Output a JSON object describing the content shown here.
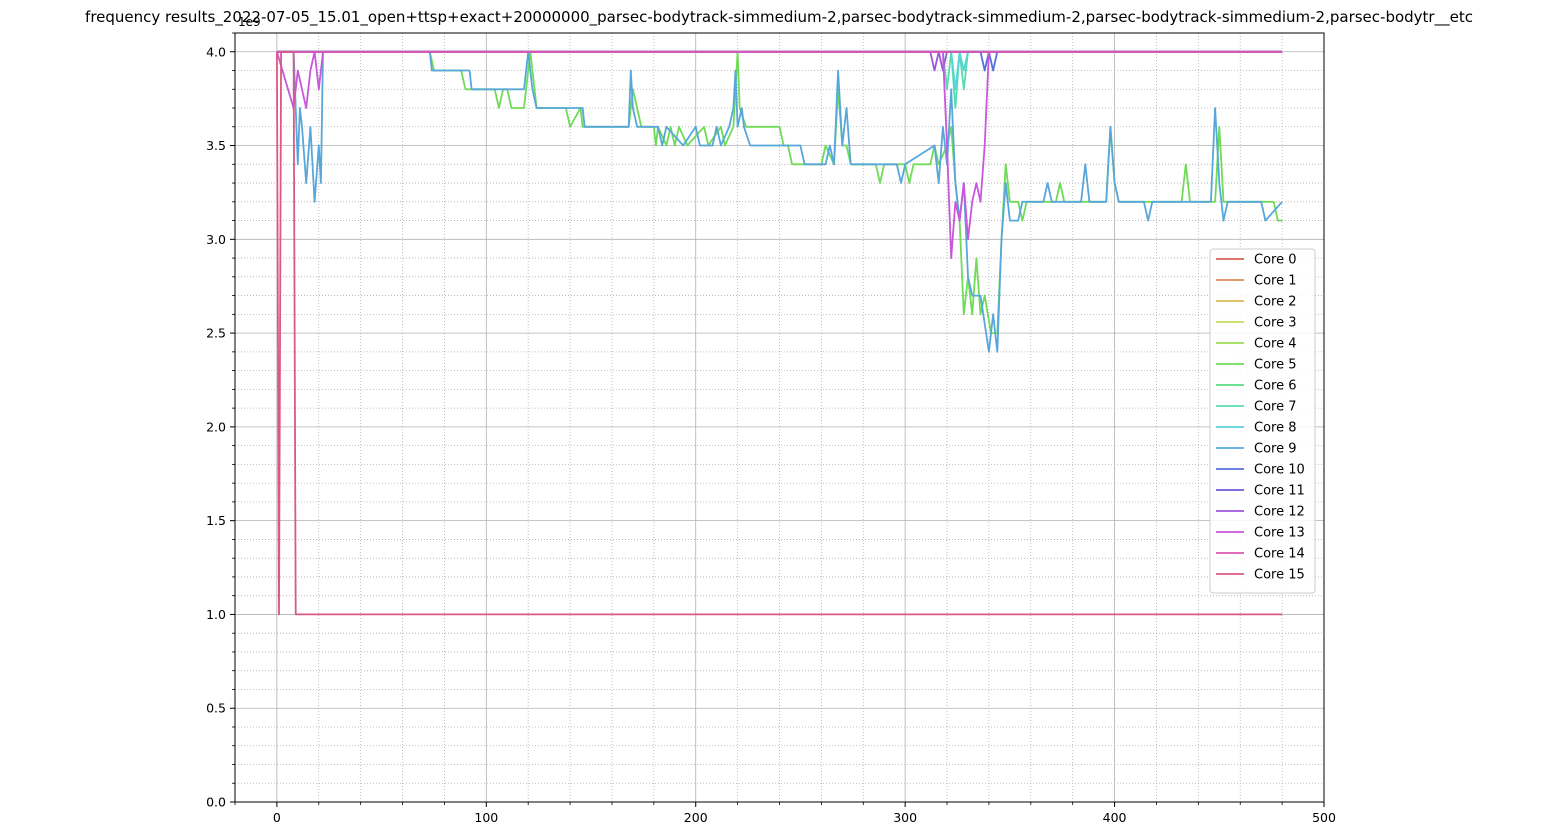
{
  "chart_data": {
    "type": "line",
    "title": "frequency results_2022-07-05_15.01_open+ttsp+exact+20000000_parsec-bodytrack-simmedium-2,parsec-bodytrack-simmedium-2,parsec-bodytrack-simmedium-2,parsec-bodytr__etc",
    "xlabel": "",
    "ylabel": "",
    "y_scale_label": "1e9",
    "xlim": [
      -20,
      500
    ],
    "ylim": [
      0,
      4.1
    ],
    "x_ticks": [
      0,
      100,
      200,
      300,
      400,
      500
    ],
    "y_ticks": [
      0.0,
      0.5,
      1.0,
      1.5,
      2.0,
      2.5,
      3.0,
      3.5,
      4.0
    ],
    "grid": "major solid, minor dotted",
    "legend_placement": "center-right",
    "series": [
      {
        "name": "Core 0",
        "color": "#db5f57",
        "points": [
          [
            0,
            4.0
          ],
          [
            480,
            4.0
          ]
        ]
      },
      {
        "name": "Core 1",
        "color": "#db8c57",
        "points": [
          [
            0,
            4.0
          ],
          [
            480,
            4.0
          ]
        ]
      },
      {
        "name": "Core 2",
        "color": "#dbb857",
        "points": [
          [
            0,
            4.0
          ],
          [
            480,
            4.0
          ]
        ]
      },
      {
        "name": "Core 3",
        "color": "#c8db57",
        "points": [
          [
            0,
            4.0
          ],
          [
            480,
            4.0
          ]
        ]
      },
      {
        "name": "Core 4",
        "color": "#9cdb57",
        "points": [
          [
            0,
            4.0
          ],
          [
            480,
            4.0
          ]
        ]
      },
      {
        "name": "Core 5",
        "color": "#6fdb57",
        "points": [
          [
            0,
            4.0
          ],
          [
            73,
            4.0
          ],
          [
            75,
            3.9
          ],
          [
            88,
            3.9
          ],
          [
            90,
            3.8
          ],
          [
            104,
            3.8
          ],
          [
            106,
            3.7
          ],
          [
            108,
            3.8
          ],
          [
            110,
            3.8
          ],
          [
            112,
            3.7
          ],
          [
            118,
            3.7
          ],
          [
            120,
            3.9
          ],
          [
            121,
            4.0
          ],
          [
            122,
            3.9
          ],
          [
            124,
            3.7
          ],
          [
            138,
            3.7
          ],
          [
            140,
            3.6
          ],
          [
            145,
            3.7
          ],
          [
            146,
            3.6
          ],
          [
            168,
            3.6
          ],
          [
            170,
            3.8
          ],
          [
            172,
            3.7
          ],
          [
            174,
            3.6
          ],
          [
            180,
            3.6
          ],
          [
            181,
            3.5
          ],
          [
            182,
            3.6
          ],
          [
            186,
            3.5
          ],
          [
            188,
            3.6
          ],
          [
            190,
            3.5
          ],
          [
            192,
            3.6
          ],
          [
            196,
            3.5
          ],
          [
            204,
            3.6
          ],
          [
            206,
            3.5
          ],
          [
            212,
            3.6
          ],
          [
            214,
            3.5
          ],
          [
            218,
            3.6
          ],
          [
            220,
            4.0
          ],
          [
            221,
            3.7
          ],
          [
            224,
            3.6
          ],
          [
            240,
            3.6
          ],
          [
            242,
            3.5
          ],
          [
            244,
            3.5
          ],
          [
            246,
            3.4
          ],
          [
            260,
            3.4
          ],
          [
            262,
            3.5
          ],
          [
            266,
            3.4
          ],
          [
            268,
            3.8
          ],
          [
            270,
            3.5
          ],
          [
            272,
            3.5
          ],
          [
            274,
            3.4
          ],
          [
            286,
            3.4
          ],
          [
            288,
            3.3
          ],
          [
            290,
            3.4
          ],
          [
            300,
            3.4
          ],
          [
            302,
            3.3
          ],
          [
            304,
            3.4
          ],
          [
            312,
            3.4
          ],
          [
            314,
            3.5
          ],
          [
            316,
            3.4
          ],
          [
            320,
            3.5
          ],
          [
            322,
            3.6
          ],
          [
            324,
            3.3
          ],
          [
            326,
            3.1
          ],
          [
            328,
            2.6
          ],
          [
            330,
            2.8
          ],
          [
            332,
            2.6
          ],
          [
            334,
            2.9
          ],
          [
            336,
            2.6
          ],
          [
            338,
            2.7
          ],
          [
            341,
            2.5
          ],
          [
            344,
            2.5
          ],
          [
            346,
            3.0
          ],
          [
            348,
            3.4
          ],
          [
            350,
            3.2
          ],
          [
            354,
            3.2
          ],
          [
            356,
            3.1
          ],
          [
            358,
            3.2
          ],
          [
            372,
            3.2
          ],
          [
            374,
            3.3
          ],
          [
            376,
            3.2
          ],
          [
            396,
            3.2
          ],
          [
            398,
            3.6
          ],
          [
            400,
            3.3
          ],
          [
            402,
            3.2
          ],
          [
            432,
            3.2
          ],
          [
            434,
            3.4
          ],
          [
            436,
            3.2
          ],
          [
            448,
            3.2
          ],
          [
            450,
            3.6
          ],
          [
            452,
            3.2
          ],
          [
            476,
            3.2
          ],
          [
            478,
            3.1
          ],
          [
            480,
            3.1
          ]
        ]
      },
      {
        "name": "Core 6",
        "color": "#57db80",
        "points": [
          [
            0,
            4.0
          ],
          [
            480,
            4.0
          ]
        ]
      },
      {
        "name": "Core 7",
        "color": "#57dbac",
        "points": [
          [
            0,
            4.0
          ],
          [
            318,
            4.0
          ],
          [
            320,
            3.8
          ],
          [
            322,
            4.0
          ],
          [
            324,
            3.7
          ],
          [
            326,
            4.0
          ],
          [
            328,
            3.8
          ],
          [
            330,
            4.0
          ],
          [
            332,
            4.0
          ],
          [
            480,
            4.0
          ]
        ]
      },
      {
        "name": "Core 8",
        "color": "#57d3db",
        "points": [
          [
            0,
            4.0
          ],
          [
            322,
            4.0
          ],
          [
            324,
            3.8
          ],
          [
            326,
            4.0
          ],
          [
            328,
            3.9
          ],
          [
            330,
            4.0
          ],
          [
            480,
            4.0
          ]
        ]
      },
      {
        "name": "Core 9",
        "color": "#57a7db",
        "points": [
          [
            0,
            4.0
          ],
          [
            8,
            4.0
          ],
          [
            10,
            3.4
          ],
          [
            11,
            3.7
          ],
          [
            12,
            3.6
          ],
          [
            14,
            3.3
          ],
          [
            16,
            3.6
          ],
          [
            18,
            3.2
          ],
          [
            20,
            3.5
          ],
          [
            21,
            3.3
          ],
          [
            22,
            4.0
          ],
          [
            73,
            4.0
          ],
          [
            74,
            3.9
          ],
          [
            92,
            3.9
          ],
          [
            93,
            3.8
          ],
          [
            118,
            3.8
          ],
          [
            120,
            4.0
          ],
          [
            122,
            3.8
          ],
          [
            124,
            3.7
          ],
          [
            146,
            3.7
          ],
          [
            147,
            3.6
          ],
          [
            168,
            3.6
          ],
          [
            169,
            3.9
          ],
          [
            170,
            3.7
          ],
          [
            172,
            3.6
          ],
          [
            182,
            3.6
          ],
          [
            184,
            3.5
          ],
          [
            186,
            3.6
          ],
          [
            194,
            3.5
          ],
          [
            200,
            3.6
          ],
          [
            202,
            3.5
          ],
          [
            208,
            3.5
          ],
          [
            210,
            3.6
          ],
          [
            212,
            3.5
          ],
          [
            216,
            3.6
          ],
          [
            218,
            3.7
          ],
          [
            219,
            3.9
          ],
          [
            220,
            3.6
          ],
          [
            222,
            3.7
          ],
          [
            223,
            3.6
          ],
          [
            226,
            3.5
          ],
          [
            250,
            3.5
          ],
          [
            252,
            3.4
          ],
          [
            262,
            3.4
          ],
          [
            264,
            3.5
          ],
          [
            266,
            3.4
          ],
          [
            268,
            3.9
          ],
          [
            270,
            3.5
          ],
          [
            272,
            3.7
          ],
          [
            274,
            3.4
          ],
          [
            296,
            3.4
          ],
          [
            298,
            3.3
          ],
          [
            300,
            3.4
          ],
          [
            314,
            3.5
          ],
          [
            316,
            3.3
          ],
          [
            318,
            3.6
          ],
          [
            320,
            3.4
          ],
          [
            322,
            3.8
          ],
          [
            324,
            3.3
          ],
          [
            326,
            3.1
          ],
          [
            328,
            3.3
          ],
          [
            330,
            2.8
          ],
          [
            332,
            2.7
          ],
          [
            336,
            2.7
          ],
          [
            340,
            2.4
          ],
          [
            342,
            2.6
          ],
          [
            344,
            2.4
          ],
          [
            346,
            3.0
          ],
          [
            348,
            3.3
          ],
          [
            350,
            3.1
          ],
          [
            354,
            3.1
          ],
          [
            356,
            3.2
          ],
          [
            366,
            3.2
          ],
          [
            368,
            3.3
          ],
          [
            370,
            3.2
          ],
          [
            384,
            3.2
          ],
          [
            386,
            3.4
          ],
          [
            388,
            3.2
          ],
          [
            396,
            3.2
          ],
          [
            398,
            3.6
          ],
          [
            400,
            3.3
          ],
          [
            402,
            3.2
          ],
          [
            414,
            3.2
          ],
          [
            416,
            3.1
          ],
          [
            418,
            3.2
          ],
          [
            446,
            3.2
          ],
          [
            448,
            3.7
          ],
          [
            450,
            3.3
          ],
          [
            452,
            3.1
          ],
          [
            454,
            3.2
          ],
          [
            470,
            3.2
          ],
          [
            472,
            3.1
          ],
          [
            480,
            3.2
          ]
        ]
      },
      {
        "name": "Core 10",
        "color": "#5770db",
        "points": [
          [
            0,
            4.0
          ],
          [
            336,
            4.0
          ],
          [
            338,
            3.9
          ],
          [
            340,
            4.0
          ],
          [
            342,
            3.9
          ],
          [
            344,
            4.0
          ],
          [
            480,
            4.0
          ]
        ]
      },
      {
        "name": "Core 11",
        "color": "#6f57db",
        "points": [
          [
            0,
            4.0
          ],
          [
            480,
            4.0
          ]
        ]
      },
      {
        "name": "Core 12",
        "color": "#9c57db",
        "points": [
          [
            0,
            4.0
          ],
          [
            312,
            4.0
          ],
          [
            314,
            3.9
          ],
          [
            316,
            4.0
          ],
          [
            318,
            3.9
          ],
          [
            320,
            4.0
          ],
          [
            480,
            4.0
          ]
        ]
      },
      {
        "name": "Core 13",
        "color": "#c857db",
        "points": [
          [
            0,
            4.0
          ],
          [
            8,
            3.7
          ],
          [
            10,
            3.9
          ],
          [
            12,
            3.8
          ],
          [
            14,
            3.7
          ],
          [
            16,
            3.9
          ],
          [
            18,
            4.0
          ],
          [
            20,
            3.8
          ],
          [
            22,
            4.0
          ],
          [
            318,
            4.0
          ],
          [
            320,
            3.5
          ],
          [
            322,
            2.9
          ],
          [
            324,
            3.2
          ],
          [
            326,
            3.1
          ],
          [
            328,
            3.3
          ],
          [
            330,
            3.0
          ],
          [
            332,
            3.2
          ],
          [
            334,
            3.3
          ],
          [
            336,
            3.2
          ],
          [
            338,
            3.5
          ],
          [
            340,
            4.0
          ],
          [
            480,
            4.0
          ]
        ]
      },
      {
        "name": "Core 14",
        "color": "#db57b2",
        "points": [
          [
            0,
            4.0
          ],
          [
            480,
            4.0
          ]
        ]
      },
      {
        "name": "Core 15",
        "color": "#db5785",
        "points": [
          [
            0,
            4.0
          ],
          [
            1,
            1.0
          ],
          [
            2,
            4.0
          ],
          [
            8,
            4.0
          ],
          [
            9,
            1.0
          ],
          [
            480,
            1.0
          ]
        ]
      }
    ]
  }
}
